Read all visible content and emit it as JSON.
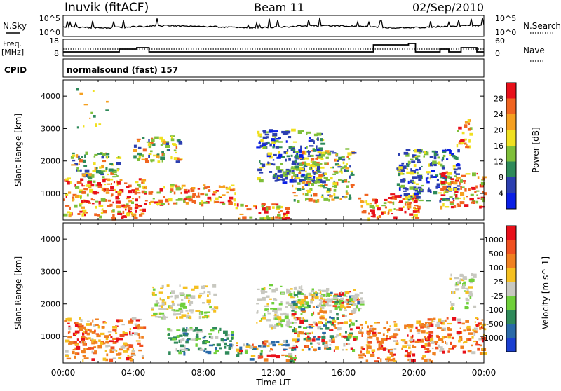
{
  "header": {
    "station": "Inuvik (fitACF)",
    "beam": "Beam 11",
    "date": "02/Sep/2010"
  },
  "strips": {
    "nsky_label": "N.Sky",
    "nsky_ticks": [
      "10^5",
      "10^0"
    ],
    "nsearch_label": "N.Search",
    "nsearch_ticks": [
      "10^5",
      "10^0"
    ],
    "freq_label": "Freq.",
    "freq_unit": "[MHz]",
    "freq_ticks": [
      "18",
      "8"
    ],
    "nave_label": "Nave",
    "nave_ticks": [
      "60",
      "0"
    ],
    "cpid_label": "CPID",
    "cpid_value": "normalsound (fast) 157"
  },
  "chart_data": [
    {
      "type": "heatmap",
      "name": "power-panel",
      "ylabel": "Slant Range [km]",
      "ylim": [
        180,
        4500
      ],
      "y_ticks": [
        "1000",
        "2000",
        "3000",
        "4000"
      ],
      "x_ticks": [
        "00:00",
        "04:00",
        "08:00",
        "12:00",
        "16:00",
        "20:00",
        "00:00"
      ],
      "xlim_hours": [
        0,
        24
      ],
      "colorbar": {
        "label": "Power [dB]",
        "ticks": [
          "4",
          "8",
          "12",
          "16",
          "20",
          "24",
          "28"
        ],
        "colors": [
          "#0a1fe6",
          "#2c3fb0",
          "#2f8a5a",
          "#7fbf3a",
          "#f0e020",
          "#f5a020",
          "#f06420",
          "#e8101a"
        ]
      },
      "echo_regions": [
        {
          "t": [
            0.0,
            4.6
          ],
          "r": [
            250,
            1500
          ],
          "level": "high"
        },
        {
          "t": [
            4.6,
            9.8
          ],
          "r": [
            700,
            1300
          ],
          "level": "high"
        },
        {
          "t": [
            0.4,
            3.2
          ],
          "r": [
            1500,
            2300
          ],
          "level": "mid"
        },
        {
          "t": [
            4.0,
            6.6
          ],
          "r": [
            2000,
            2800
          ],
          "level": "mid"
        },
        {
          "t": [
            9.8,
            12.8
          ],
          "r": [
            250,
            700
          ],
          "level": "high"
        },
        {
          "t": [
            11.0,
            14.8
          ],
          "r": [
            1300,
            3000
          ],
          "level": "low"
        },
        {
          "t": [
            13.0,
            16.5
          ],
          "r": [
            800,
            2400
          ],
          "level": "mid"
        },
        {
          "t": [
            16.8,
            20.2
          ],
          "r": [
            250,
            1000
          ],
          "level": "high"
        },
        {
          "t": [
            19.0,
            22.5
          ],
          "r": [
            800,
            2400
          ],
          "level": "low"
        },
        {
          "t": [
            21.5,
            24.0
          ],
          "r": [
            600,
            1700
          ],
          "level": "high"
        },
        {
          "t": [
            22.4,
            23.2
          ],
          "r": [
            2400,
            3300
          ],
          "level": "high"
        },
        {
          "t": [
            0.6,
            2.6
          ],
          "r": [
            3000,
            4300
          ],
          "level": "sparse"
        }
      ]
    },
    {
      "type": "heatmap",
      "name": "velocity-panel",
      "ylabel": "Slant Range [km]",
      "ylim": [
        180,
        4500
      ],
      "y_ticks": [
        "1000",
        "2000",
        "3000",
        "4000"
      ],
      "x_ticks": [
        "00:00",
        "04:00",
        "08:00",
        "12:00",
        "16:00",
        "20:00",
        "00:00"
      ],
      "xlabel": "Time UT",
      "xlim_hours": [
        0,
        24
      ],
      "colorbar": {
        "label": "Velocity [m s^-1]",
        "ticks": [
          "1000",
          "500",
          "100",
          "25",
          "-25",
          "-100",
          "-500",
          "-1000"
        ],
        "colors": [
          "#1a3fd0",
          "#2a6aa8",
          "#2f8a5a",
          "#6fcf3a",
          "#c8c8c0",
          "#f5c020",
          "#f08020",
          "#f05020",
          "#e8101a"
        ]
      },
      "echo_regions": [
        {
          "t": [
            0.0,
            4.6
          ],
          "r": [
            300,
            1600
          ],
          "level": "away"
        },
        {
          "t": [
            5.8,
            9.6
          ],
          "r": [
            500,
            1300
          ],
          "level": "toward"
        },
        {
          "t": [
            5.0,
            8.6
          ],
          "r": [
            1600,
            2600
          ],
          "level": "zero"
        },
        {
          "t": [
            9.8,
            13.2
          ],
          "r": [
            250,
            900
          ],
          "level": "mixed"
        },
        {
          "t": [
            11.0,
            13.8
          ],
          "r": [
            1300,
            2600
          ],
          "level": "zero"
        },
        {
          "t": [
            13.0,
            16.8
          ],
          "r": [
            600,
            2400
          ],
          "level": "mixed"
        },
        {
          "t": [
            14.0,
            17.0
          ],
          "r": [
            1800,
            2500
          ],
          "level": "zero"
        },
        {
          "t": [
            16.8,
            21.0
          ],
          "r": [
            250,
            1500
          ],
          "level": "away"
        },
        {
          "t": [
            20.6,
            24.0
          ],
          "r": [
            500,
            1600
          ],
          "level": "away"
        },
        {
          "t": [
            22.0,
            23.4
          ],
          "r": [
            1900,
            3000
          ],
          "level": "zero"
        }
      ]
    }
  ]
}
